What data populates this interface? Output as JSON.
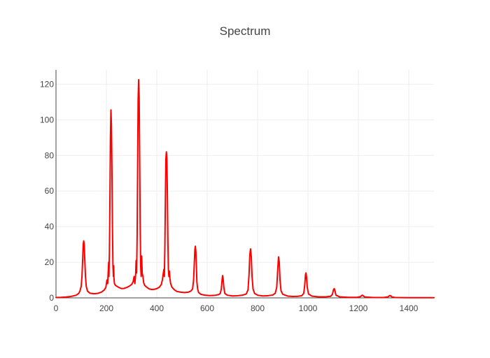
{
  "chart_data": {
    "type": "line",
    "title": "Spectrum",
    "xlabel": "",
    "ylabel": "",
    "xlim": [
      0,
      1500
    ],
    "ylim": [
      0,
      128
    ],
    "x_ticks": [
      0,
      200,
      400,
      600,
      800,
      1000,
      1200,
      1400
    ],
    "y_ticks": [
      0,
      20,
      40,
      60,
      80,
      100,
      120
    ],
    "grid": true,
    "legend": "none",
    "line_color": "#ff0000",
    "series": [
      {
        "points": [
          [
            0,
            0.2
          ],
          [
            20,
            0.3
          ],
          [
            40,
            0.5
          ],
          [
            60,
            0.8
          ],
          [
            80,
            1.5
          ],
          [
            90,
            2.5
          ],
          [
            95,
            3.8
          ],
          [
            100,
            6.5
          ],
          [
            103,
            12
          ],
          [
            106,
            22
          ],
          [
            108,
            30
          ],
          [
            110,
            32
          ],
          [
            112,
            30
          ],
          [
            114,
            22
          ],
          [
            117,
            12
          ],
          [
            120,
            6.5
          ],
          [
            125,
            3.8
          ],
          [
            135,
            2.6
          ],
          [
            150,
            2.3
          ],
          [
            165,
            2.5
          ],
          [
            180,
            3.2
          ],
          [
            192,
            4.5
          ],
          [
            198,
            6
          ],
          [
            202,
            10
          ],
          [
            205,
            8
          ],
          [
            207,
            14
          ],
          [
            209,
            20
          ],
          [
            210,
            12
          ],
          [
            212,
            26
          ],
          [
            214,
            55
          ],
          [
            216,
            90
          ],
          [
            218,
            105.5
          ],
          [
            220,
            97
          ],
          [
            222,
            72
          ],
          [
            224,
            40
          ],
          [
            226,
            18
          ],
          [
            228,
            12
          ],
          [
            229,
            18
          ],
          [
            230,
            11
          ],
          [
            232,
            8
          ],
          [
            236,
            7
          ],
          [
            242,
            6.5
          ],
          [
            250,
            5.8
          ],
          [
            260,
            5.2
          ],
          [
            270,
            5.3
          ],
          [
            280,
            5.8
          ],
          [
            290,
            6.5
          ],
          [
            300,
            7.5
          ],
          [
            306,
            9
          ],
          [
            310,
            12
          ],
          [
            313,
            8
          ],
          [
            316,
            13
          ],
          [
            318,
            21
          ],
          [
            320,
            14
          ],
          [
            322,
            35
          ],
          [
            324,
            75
          ],
          [
            326,
            112
          ],
          [
            328,
            122.5
          ],
          [
            330,
            113
          ],
          [
            332,
            80
          ],
          [
            334,
            42
          ],
          [
            336,
            18
          ],
          [
            338,
            12
          ],
          [
            340,
            23.5
          ],
          [
            342,
            14
          ],
          [
            345,
            12
          ],
          [
            348,
            8.5
          ],
          [
            352,
            7
          ],
          [
            360,
            6
          ],
          [
            370,
            5
          ],
          [
            380,
            4.7
          ],
          [
            390,
            4.8
          ],
          [
            400,
            5.2
          ],
          [
            410,
            6
          ],
          [
            418,
            7.5
          ],
          [
            422,
            10
          ],
          [
            425,
            13
          ],
          [
            428,
            16
          ],
          [
            430,
            12
          ],
          [
            432,
            28
          ],
          [
            434,
            55
          ],
          [
            436,
            78
          ],
          [
            438,
            82
          ],
          [
            440,
            78
          ],
          [
            442,
            58
          ],
          [
            444,
            32
          ],
          [
            446,
            16
          ],
          [
            448,
            12
          ],
          [
            450,
            15
          ],
          [
            452,
            11
          ],
          [
            455,
            8
          ],
          [
            460,
            6
          ],
          [
            470,
            4.5
          ],
          [
            480,
            3.6
          ],
          [
            495,
            3.2
          ],
          [
            510,
            3
          ],
          [
            525,
            3.2
          ],
          [
            535,
            3.8
          ],
          [
            542,
            5
          ],
          [
            546,
            10
          ],
          [
            549,
            20
          ],
          [
            551,
            27
          ],
          [
            553,
            29
          ],
          [
            555,
            26
          ],
          [
            557,
            18
          ],
          [
            559,
            9
          ],
          [
            562,
            5
          ],
          [
            566,
            3
          ],
          [
            575,
            2
          ],
          [
            590,
            1.5
          ],
          [
            610,
            1.3
          ],
          [
            630,
            1.4
          ],
          [
            645,
            1.8
          ],
          [
            652,
            2.5
          ],
          [
            656,
            5
          ],
          [
            659,
            10
          ],
          [
            661,
            12.5
          ],
          [
            663,
            11
          ],
          [
            666,
            6
          ],
          [
            670,
            2.5
          ],
          [
            680,
            1.5
          ],
          [
            700,
            1.1
          ],
          [
            720,
            1.2
          ],
          [
            740,
            1.5
          ],
          [
            755,
            2.2
          ],
          [
            762,
            4.5
          ],
          [
            766,
            13
          ],
          [
            769,
            24
          ],
          [
            772,
            27.5
          ],
          [
            775,
            23
          ],
          [
            778,
            12
          ],
          [
            782,
            5
          ],
          [
            788,
            2.5
          ],
          [
            800,
            1.5
          ],
          [
            820,
            1.1
          ],
          [
            840,
            1.2
          ],
          [
            860,
            1.6
          ],
          [
            870,
            2.6
          ],
          [
            876,
            6
          ],
          [
            880,
            16
          ],
          [
            883,
            23
          ],
          [
            886,
            20
          ],
          [
            889,
            10
          ],
          [
            893,
            4
          ],
          [
            900,
            2
          ],
          [
            920,
            1
          ],
          [
            940,
            0.8
          ],
          [
            960,
            0.9
          ],
          [
            975,
            1.2
          ],
          [
            983,
            2.5
          ],
          [
            987,
            7
          ],
          [
            990,
            13
          ],
          [
            992,
            14
          ],
          [
            994,
            12
          ],
          [
            997,
            6
          ],
          [
            1002,
            2.2
          ],
          [
            1015,
            1
          ],
          [
            1040,
            0.6
          ],
          [
            1070,
            0.6
          ],
          [
            1090,
            0.9
          ],
          [
            1097,
            2
          ],
          [
            1101,
            4.5
          ],
          [
            1104,
            5.2
          ],
          [
            1107,
            4
          ],
          [
            1111,
            1.5
          ],
          [
            1125,
            0.6
          ],
          [
            1160,
            0.3
          ],
          [
            1195,
            0.3
          ],
          [
            1208,
            0.7
          ],
          [
            1213,
            1.3
          ],
          [
            1216,
            1.5
          ],
          [
            1219,
            1.2
          ],
          [
            1225,
            0.5
          ],
          [
            1260,
            0.2
          ],
          [
            1300,
            0.2
          ],
          [
            1318,
            0.6
          ],
          [
            1324,
            1.3
          ],
          [
            1327,
            1.3
          ],
          [
            1332,
            0.6
          ],
          [
            1345,
            0.2
          ],
          [
            1400,
            0.1
          ],
          [
            1450,
            0.1
          ],
          [
            1500,
            0.1
          ]
        ]
      }
    ]
  }
}
